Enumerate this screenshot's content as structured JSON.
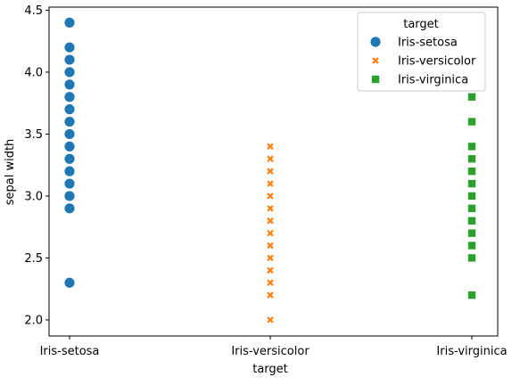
{
  "chart_data": {
    "type": "scatter",
    "xlabel": "target",
    "ylabel": "sepal width",
    "categories": [
      "Iris-setosa",
      "Iris-versicolor",
      "Iris-virginica"
    ],
    "ylim": [
      1.87,
      4.525
    ],
    "yticks": [
      2.0,
      2.5,
      3.0,
      3.5,
      4.0,
      4.5
    ],
    "ytick_labels": [
      "2.0",
      "2.5",
      "3.0",
      "3.5",
      "4.0",
      "4.5"
    ],
    "grid": false,
    "legend_position": "top-right",
    "legend_title": "target",
    "series": [
      {
        "name": "Iris-setosa",
        "marker": "circle",
        "color": "#1f77b4",
        "category": "Iris-setosa",
        "values": [
          4.4,
          4.2,
          4.1,
          4.0,
          3.9,
          3.8,
          3.7,
          3.6,
          3.5,
          3.4,
          3.3,
          3.2,
          3.1,
          3.0,
          2.9,
          2.3
        ]
      },
      {
        "name": "Iris-versicolor",
        "marker": "x",
        "color": "#ff7f0e",
        "category": "Iris-versicolor",
        "values": [
          3.4,
          3.3,
          3.2,
          3.1,
          3.0,
          2.9,
          2.8,
          2.7,
          2.6,
          2.5,
          2.4,
          2.3,
          2.2,
          2.0
        ]
      },
      {
        "name": "Iris-virginica",
        "marker": "square",
        "color": "#2ca02c",
        "category": "Iris-virginica",
        "values": [
          3.8,
          3.6,
          3.4,
          3.3,
          3.2,
          3.1,
          3.0,
          2.9,
          2.8,
          2.7,
          2.6,
          2.5,
          2.2
        ]
      }
    ]
  }
}
